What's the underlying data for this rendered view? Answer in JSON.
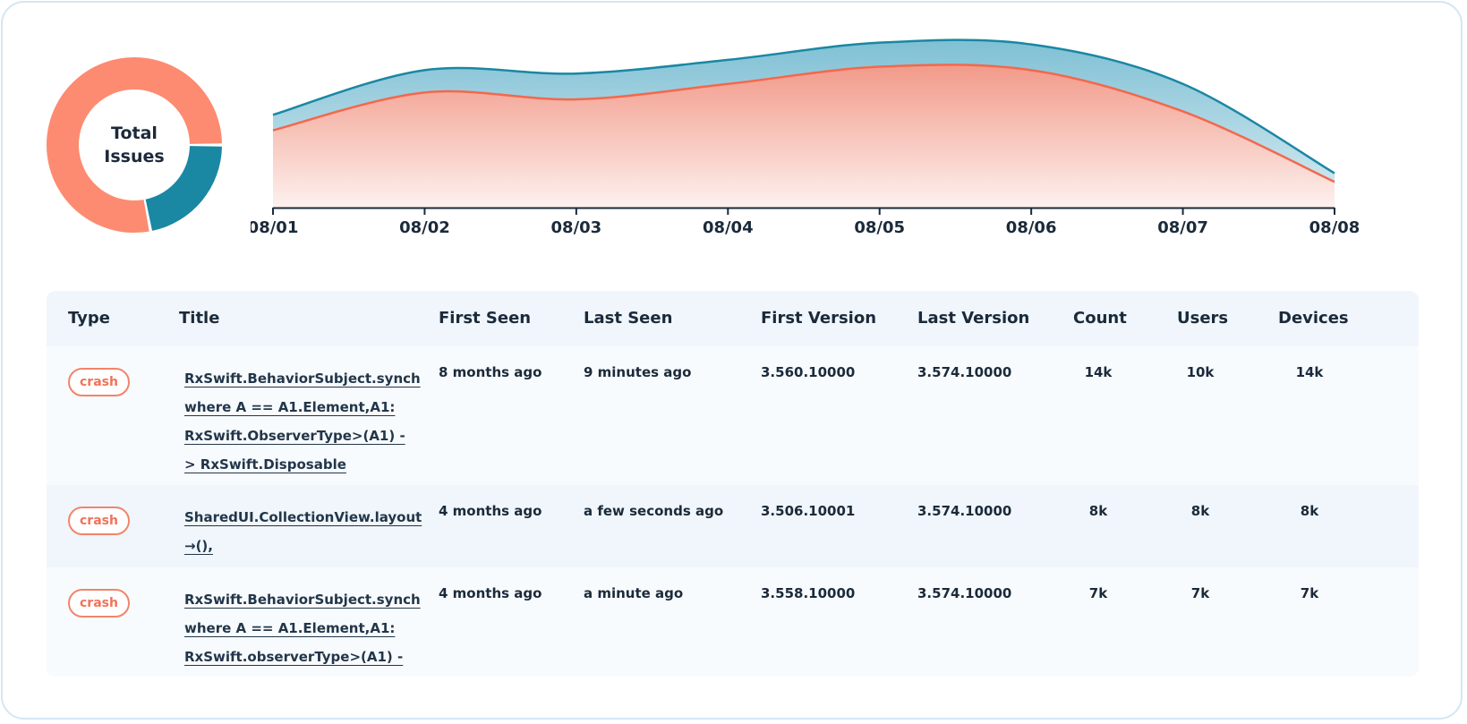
{
  "donut": {
    "label": "Total\nIssues",
    "segments": [
      {
        "color": "#fd8b71",
        "value": 0.78
      },
      {
        "color": "#1a87a3",
        "value": 0.22
      }
    ]
  },
  "colors": {
    "teal": "#1a87a3",
    "coral": "#f3684d",
    "teal_fill": "#7fc0d4",
    "coral_fill": "#f29a89"
  },
  "chart_data": {
    "type": "area",
    "x": [
      "08/01",
      "08/02",
      "08/03",
      "08/04",
      "08/05",
      "08/06",
      "08/07",
      "08/08"
    ],
    "series": [
      {
        "values": [
          54,
          80,
          78,
          86,
          96,
          95,
          72,
          20
        ]
      },
      {
        "values": [
          45,
          67,
          63,
          72,
          82,
          80,
          56,
          15
        ]
      }
    ],
    "ylim": [
      0,
      100
    ]
  },
  "table": {
    "headers": [
      "Type",
      "Title",
      "First Seen",
      "Last Seen",
      "First Version",
      "Last Version",
      "Count",
      "Users",
      "Devices"
    ],
    "rows": [
      {
        "type": "crash",
        "title": "RxSwift.BehaviorSubject.synch\nwhere A == A1.Element,A1:\nRxSwift.ObserverType>(A1) -\n> RxSwift.Disposable",
        "first_seen": "8 months ago",
        "last_seen": "9 minutes ago",
        "first_version": "3.560.10000",
        "last_version": "3.574.10000",
        "count": "14k",
        "users": "10k",
        "devices": "14k"
      },
      {
        "type": "crash",
        "title": "SharedUI.CollectionView.layout\n→(),",
        "first_seen": "4 months ago",
        "last_seen": "a few seconds ago",
        "first_version": "3.506.10001",
        "last_version": "3.574.10000",
        "count": "8k",
        "users": "8k",
        "devices": "8k"
      },
      {
        "type": "crash",
        "title": "RxSwift.BehaviorSubject.synch\nwhere A == A1.Element,A1:\nRxSwift.observerType>(A1) -",
        "first_seen": "4 months ago",
        "last_seen": "a minute ago",
        "first_version": "3.558.10000",
        "last_version": "3.574.10000",
        "count": "7k",
        "users": "7k",
        "devices": "7k"
      }
    ]
  }
}
